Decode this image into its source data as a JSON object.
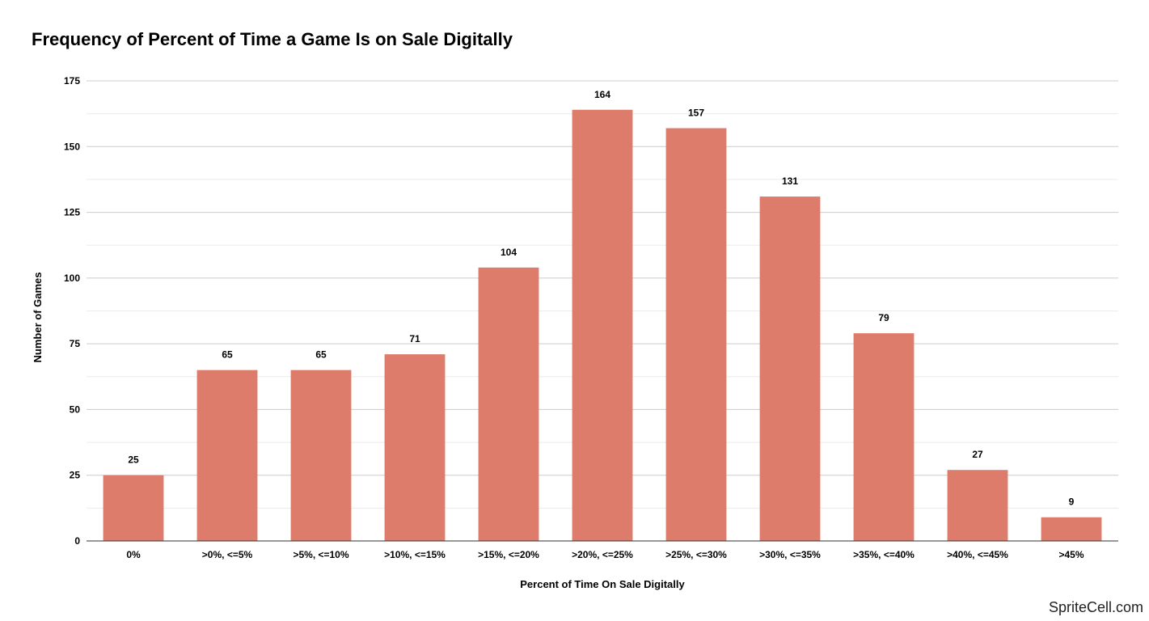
{
  "chart_data": {
    "type": "bar",
    "title": "Frequency of Percent of Time a Game Is on Sale Digitally",
    "xlabel": "Percent of Time On Sale Digitally",
    "ylabel": "Number of Games",
    "categories": [
      "0%",
      ">0%, <=5%",
      ">5%, <=10%",
      ">10%, <=15%",
      ">15%, <=20%",
      ">20%, <=25%",
      ">25%, <=30%",
      ">30%, <=35%",
      ">35%, <=40%",
      ">40%, <=45%",
      ">45%"
    ],
    "values": [
      25,
      65,
      65,
      71,
      104,
      164,
      157,
      131,
      79,
      27,
      9
    ],
    "data_labels": [
      "25",
      "65",
      "65",
      "71",
      "104",
      "164",
      "157",
      "131",
      "79",
      "27",
      "9"
    ],
    "ylim": [
      0,
      175
    ],
    "yticks": [
      0,
      25,
      50,
      75,
      100,
      125,
      150,
      175
    ],
    "ytick_labels": [
      "0",
      "25",
      "50",
      "75",
      "100",
      "125",
      "150",
      "175"
    ],
    "grid": true,
    "legend": "none",
    "bar_color": "#de7c6b"
  },
  "watermark": "SpriteCell.com"
}
